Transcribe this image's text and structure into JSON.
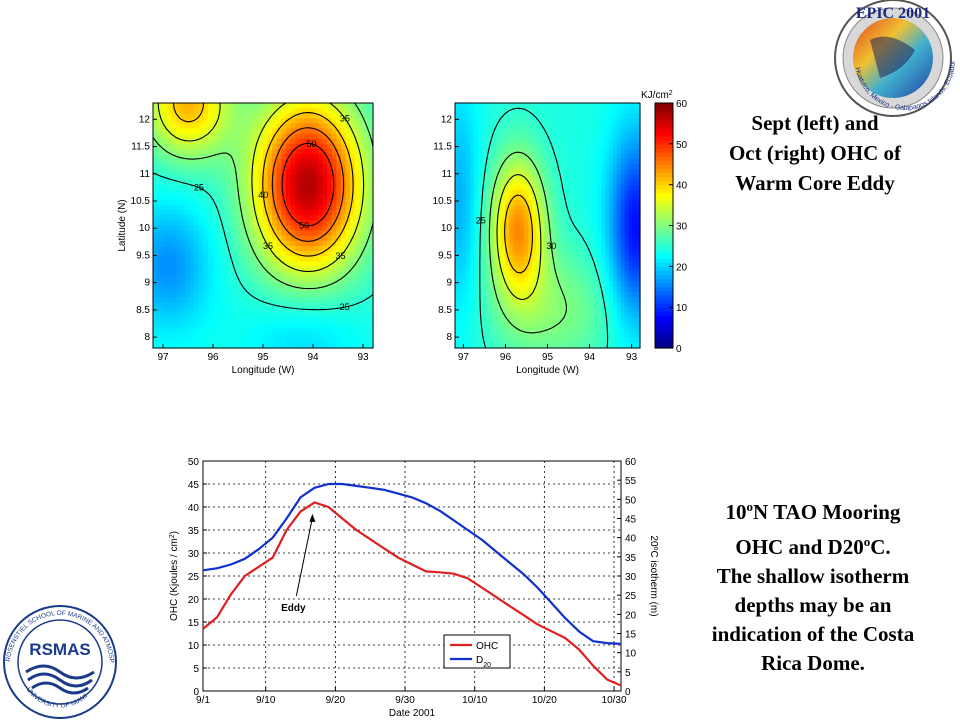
{
  "captions": {
    "top": [
      "Sept (left) and",
      "Oct (right) OHC of",
      "Warm Core Eddy"
    ],
    "bottom": {
      "line1_pre": "10",
      "line1_sup": "o",
      "line1_post": "N TAO Mooring",
      "line2_pre": "OHC and D20",
      "line2_sup": "o",
      "line2_post": "C.",
      "rest": [
        "The shallow isotherm",
        "depths may be an",
        "indication of the Costa",
        "Rica Dome."
      ]
    }
  },
  "logos": {
    "epic": {
      "top": "EPIC 2001",
      "ring": "Huatulco, Mexico - Galapagos Islands, Ecuador"
    },
    "rsmas": {
      "name": "RSMAS",
      "ring": "ROSENSTIEL SCHOOL OF MARINE AND ATMOSPHERIC SCIENCE",
      "bottom": "UNIVERSITY OF MIAMI"
    }
  },
  "colors": {
    "ohc": "#e02020",
    "d20": "#1030d0",
    "grid": "#000000"
  },
  "chart_data": [
    {
      "type": "heatmap",
      "panel": "Sept",
      "xlabel": "Longitude (W)",
      "ylabel": "Latitude (N)",
      "xticks": [
        "97",
        "96",
        "95",
        "94",
        "93"
      ],
      "yticks": [
        "12",
        "11.5",
        "11",
        "10.5",
        "10",
        "9.5",
        "9",
        "8.5",
        "8"
      ],
      "xlim": [
        97.2,
        92.8
      ],
      "ylim": [
        7.8,
        12.3
      ],
      "colorbar": {
        "unit": "KJ/cm",
        "unit_sup": "2",
        "ticks": [
          "60",
          "50",
          "40",
          "30",
          "20",
          "10",
          "0"
        ],
        "range": [
          0,
          60
        ]
      },
      "blobs": [
        {
          "lon": 94.1,
          "lat": 10.8,
          "amp": 33,
          "sx": 0.75,
          "sy": 1.1
        },
        {
          "lon": 96.5,
          "lat": 12.3,
          "amp": 18,
          "sx": 0.6,
          "sy": 0.7
        },
        {
          "lon": 96.9,
          "lat": 9.3,
          "amp": -8,
          "sx": 0.6,
          "sy": 0.8
        },
        {
          "lon": 94.2,
          "lat": 8.0,
          "amp": -4,
          "sx": 0.8,
          "sy": 0.6
        }
      ],
      "base": 24,
      "contour_labels": [
        "40",
        "30",
        "35",
        "35",
        "25",
        "30",
        "45",
        "50",
        "40",
        "35",
        "30",
        "25",
        "30",
        "30",
        "30"
      ]
    },
    {
      "type": "heatmap",
      "panel": "Oct",
      "xlabel": "Longitude (W)",
      "ylabel": "",
      "xticks": [
        "97",
        "96",
        "95",
        "94",
        "93"
      ],
      "yticks": [
        "12",
        "11.5",
        "11",
        "10.5",
        "10",
        "9.5",
        "9",
        "8.5",
        "8"
      ],
      "xlim": [
        97.2,
        92.8
      ],
      "ylim": [
        7.8,
        12.3
      ],
      "blobs": [
        {
          "lon": 95.7,
          "lat": 10.0,
          "amp": 20,
          "sx": 0.45,
          "sy": 0.9
        },
        {
          "lon": 94.8,
          "lat": 8.5,
          "amp": 6,
          "sx": 1.0,
          "sy": 0.8
        },
        {
          "lon": 92.9,
          "lat": 10.0,
          "amp": -16,
          "sx": 0.45,
          "sy": 1.2
        },
        {
          "lon": 97.1,
          "lat": 10.5,
          "amp": -6,
          "sx": 0.35,
          "sy": 1.5
        }
      ],
      "base": 24,
      "contour_labels": [
        "30",
        "40",
        "35",
        "30",
        "25",
        "45",
        "40",
        "35",
        "30",
        "25",
        "30"
      ]
    },
    {
      "type": "line",
      "xlabel": "Date 2001",
      "ylabel": "OHC (Kjoules / cm",
      "ylabel_sup": "2",
      "ylabel_end": ")",
      "y2label": "20",
      "y2label_sup": "o",
      "y2label_end": "C isotherm (m)",
      "xticks": [
        "9/1",
        "9/10",
        "9/20",
        "9/30",
        "10/10",
        "10/20",
        "10/30"
      ],
      "xtick_days": [
        0,
        9,
        19,
        29,
        39,
        49,
        59
      ],
      "xlim": [
        0,
        60
      ],
      "ylim": [
        0,
        50
      ],
      "yticks": [
        "0",
        "5",
        "10",
        "15",
        "20",
        "25",
        "30",
        "35",
        "40",
        "45",
        "50"
      ],
      "y2lim": [
        0,
        60
      ],
      "y2ticks": [
        "0",
        "5",
        "10",
        "15",
        "20",
        "25",
        "30",
        "35",
        "40",
        "45",
        "50",
        "55",
        "60"
      ],
      "annotation": "Eddy",
      "annotation_target": {
        "day": 15.7,
        "y": 38.5
      },
      "series": [
        {
          "name": "OHC",
          "axis": "left",
          "x": [
            0,
            2,
            4,
            6,
            8,
            10,
            12,
            14,
            16,
            18,
            20,
            22,
            24,
            26,
            28,
            30,
            32,
            34,
            36,
            38,
            40,
            42,
            44,
            46,
            48,
            50,
            52,
            54,
            56,
            58,
            60
          ],
          "y": [
            13.5,
            16,
            21,
            25,
            27,
            29,
            35,
            39,
            41,
            40,
            37.5,
            35,
            33,
            31,
            29,
            27.5,
            26,
            25.8,
            25.5,
            24.5,
            22.5,
            20.5,
            18.5,
            16.5,
            14.5,
            13,
            11.5,
            9,
            5.5,
            2.5,
            1.2
          ]
        },
        {
          "name": "D",
          "name_sub": "20",
          "axis": "right",
          "x": [
            0,
            2,
            4,
            6,
            8,
            10,
            12,
            14,
            16,
            18,
            20,
            22,
            24,
            26,
            28,
            30,
            32,
            34,
            36,
            38,
            40,
            42,
            44,
            46,
            48,
            50,
            52,
            54,
            56,
            58,
            60
          ],
          "y": [
            31.5,
            32,
            33,
            34.5,
            37,
            40,
            45,
            50.5,
            53,
            54,
            54,
            53.5,
            53,
            52.5,
            51.5,
            50.5,
            49,
            47,
            44.5,
            42,
            39.5,
            36.5,
            33.5,
            30.5,
            27,
            23,
            19,
            15.5,
            13,
            12.5,
            12.3
          ]
        }
      ],
      "legend_position": "bottom-right"
    }
  ]
}
